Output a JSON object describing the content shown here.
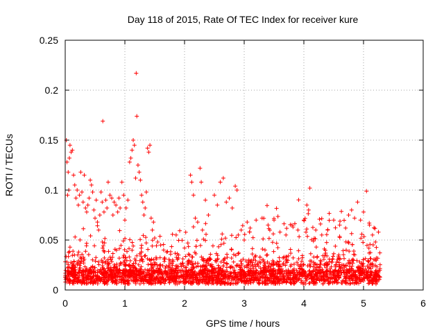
{
  "chart_data": {
    "type": "scatter",
    "title": "Day 118 of 2015, Rate Of TEC Index for receiver kure",
    "xlabel": "GPS time / hours",
    "ylabel": "ROTI / TECUs",
    "xlim": [
      0,
      6
    ],
    "ylim": [
      0,
      0.25
    ],
    "xticks": [
      "0",
      "1",
      "2",
      "3",
      "4",
      "5",
      "6"
    ],
    "yticks": [
      "0",
      "0.05",
      "0.1",
      "0.15",
      "0.2",
      "0.25"
    ],
    "grid": true,
    "marker": "plus",
    "color": "#ff0000",
    "series": [
      {
        "points": [
          [
            0.02,
            0.15
          ],
          [
            0.03,
            0.128
          ],
          [
            0.04,
            0.095
          ],
          [
            0.05,
            0.118
          ],
          [
            0.06,
            0.1
          ],
          [
            0.07,
            0.132
          ],
          [
            0.08,
            0.145
          ],
          [
            0.1,
            0.138
          ],
          [
            0.12,
            0.14
          ],
          [
            0.14,
            0.115
          ],
          [
            0.16,
            0.105
          ],
          [
            0.18,
            0.092
          ],
          [
            0.2,
            0.1
          ],
          [
            0.22,
            0.085
          ],
          [
            0.24,
            0.095
          ],
          [
            0.26,
            0.118
          ],
          [
            0.28,
            0.098
          ],
          [
            0.3,
            0.088
          ],
          [
            0.32,
            0.115
          ],
          [
            0.34,
            0.082
          ],
          [
            0.36,
            0.078
          ],
          [
            0.38,
            0.085
          ],
          [
            0.4,
            0.092
          ],
          [
            0.42,
            0.11
          ],
          [
            0.44,
            0.105
          ],
          [
            0.46,
            0.098
          ],
          [
            0.48,
            0.08
          ],
          [
            0.5,
            0.072
          ],
          [
            0.52,
            0.09
          ],
          [
            0.54,
            0.068
          ],
          [
            0.56,
            0.06
          ],
          [
            0.58,
            0.075
          ],
          [
            0.6,
            0.098
          ],
          [
            0.62,
            0.088
          ],
          [
            0.63,
            0.169
          ],
          [
            0.65,
            0.078
          ],
          [
            0.68,
            0.09
          ],
          [
            0.7,
            0.082
          ],
          [
            0.72,
            0.108
          ],
          [
            0.75,
            0.095
          ],
          [
            0.78,
            0.092
          ],
          [
            0.8,
            0.075
          ],
          [
            0.82,
            0.088
          ],
          [
            0.85,
            0.085
          ],
          [
            0.88,
            0.078
          ],
          [
            0.9,
            0.092
          ],
          [
            0.92,
            0.082
          ],
          [
            0.95,
            0.108
          ],
          [
            0.98,
            0.095
          ],
          [
            1.0,
            0.07
          ],
          [
            1.02,
            0.082
          ],
          [
            1.05,
            0.09
          ],
          [
            1.08,
            0.128
          ],
          [
            1.1,
            0.132
          ],
          [
            1.12,
            0.14
          ],
          [
            1.14,
            0.15
          ],
          [
            1.16,
            0.145
          ],
          [
            1.18,
            0.112
          ],
          [
            1.19,
            0.217
          ],
          [
            1.2,
            0.174
          ],
          [
            1.22,
            0.125
          ],
          [
            1.24,
            0.118
          ],
          [
            1.26,
            0.11
          ],
          [
            1.28,
            0.095
          ],
          [
            1.3,
            0.088
          ],
          [
            1.32,
            0.075
          ],
          [
            1.34,
            0.082
          ],
          [
            1.36,
            0.098
          ],
          [
            1.38,
            0.142
          ],
          [
            1.4,
            0.138
          ],
          [
            1.42,
            0.145
          ],
          [
            1.44,
            0.072
          ],
          [
            1.46,
            0.06
          ],
          [
            1.48,
            0.068
          ],
          [
            1.5,
            0.052
          ],
          [
            1.55,
            0.048
          ],
          [
            1.6,
            0.045
          ],
          [
            1.65,
            0.04
          ],
          [
            1.7,
            0.038
          ],
          [
            1.8,
            0.03
          ],
          [
            1.9,
            0.035
          ],
          [
            2.0,
            0.042
          ],
          [
            2.05,
            0.028
          ],
          [
            2.1,
            0.115
          ],
          [
            2.12,
            0.108
          ],
          [
            2.15,
            0.095
          ],
          [
            2.18,
            0.072
          ],
          [
            2.22,
            0.068
          ],
          [
            2.26,
            0.122
          ],
          [
            2.28,
            0.108
          ],
          [
            2.3,
            0.06
          ],
          [
            2.35,
            0.09
          ],
          [
            2.4,
            0.075
          ],
          [
            2.5,
            0.095
          ],
          [
            2.55,
            0.085
          ],
          [
            2.6,
            0.108
          ],
          [
            2.65,
            0.112
          ],
          [
            2.7,
            0.088
          ],
          [
            2.75,
            0.092
          ],
          [
            2.8,
            0.082
          ],
          [
            2.85,
            0.104
          ],
          [
            2.88,
            0.1
          ],
          [
            2.9,
            0.055
          ],
          [
            2.95,
            0.06
          ],
          [
            3.0,
            0.05
          ],
          [
            3.05,
            0.068
          ],
          [
            3.1,
            0.062
          ],
          [
            3.2,
            0.07
          ],
          [
            3.3,
            0.072
          ],
          [
            3.4,
            0.065
          ],
          [
            3.5,
            0.07
          ],
          [
            3.6,
            0.058
          ],
          [
            3.7,
            0.055
          ],
          [
            3.8,
            0.065
          ],
          [
            3.9,
            0.06
          ],
          [
            4.0,
            0.07
          ],
          [
            4.05,
            0.085
          ],
          [
            4.08,
            0.08
          ],
          [
            4.1,
            0.102
          ],
          [
            4.2,
            0.06
          ],
          [
            4.3,
            0.055
          ],
          [
            4.4,
            0.06
          ],
          [
            4.5,
            0.07
          ],
          [
            4.6,
            0.065
          ],
          [
            4.7,
            0.062
          ],
          [
            4.75,
            0.075
          ],
          [
            4.8,
            0.08
          ],
          [
            4.85,
            0.072
          ],
          [
            4.9,
            0.088
          ],
          [
            4.95,
            0.07
          ],
          [
            5.0,
            0.078
          ],
          [
            5.05,
            0.099
          ],
          [
            5.1,
            0.065
          ],
          [
            5.15,
            0.055
          ],
          [
            5.2,
            0.048
          ],
          [
            5.25,
            0.058
          ]
        ]
      }
    ]
  }
}
